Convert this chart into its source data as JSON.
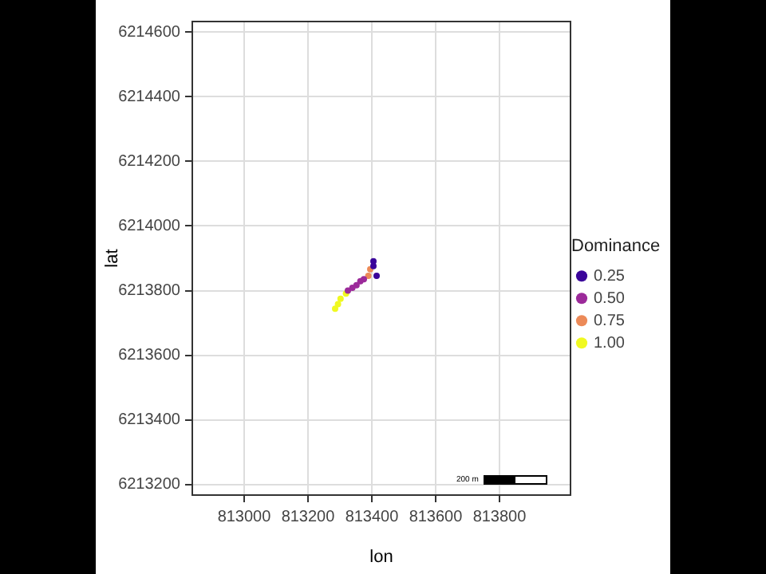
{
  "chart_data": {
    "type": "scatter",
    "xlabel": "lon",
    "ylabel": "lat",
    "legend_title": "Dominance",
    "series": [
      {
        "name": "0.25",
        "color": "#3a049a",
        "x": [
          813405,
          813405,
          813415
        ],
        "values": [
          6213891,
          6213876,
          6213846
        ]
      },
      {
        "name": "0.50",
        "color": "#9c2a9a",
        "x": [
          813375,
          813364,
          813352,
          813339,
          813325
        ],
        "values": [
          6213835,
          6213829,
          6213817,
          6213809,
          6213800
        ]
      },
      {
        "name": "0.75",
        "color": "#ec8a58",
        "x": [
          813395,
          813389
        ],
        "values": [
          6213866,
          6213846
        ]
      },
      {
        "name": "1.00",
        "color": "#f0f921",
        "x": [
          813319,
          813302,
          813294,
          813285
        ],
        "values": [
          6213791,
          6213775,
          6213758,
          6213744
        ]
      }
    ],
    "xlim": [
      812835,
      814025
    ],
    "xticks": [
      813000,
      813200,
      813400,
      813600,
      813800
    ],
    "ylim": [
      6213165,
      6214635
    ],
    "yticks": [
      6213200,
      6213400,
      6213600,
      6213800,
      6214000,
      6214200,
      6214400,
      6214600
    ],
    "grid": true,
    "legend": "right",
    "marker": "circle",
    "annotations": [
      "200 m"
    ]
  }
}
